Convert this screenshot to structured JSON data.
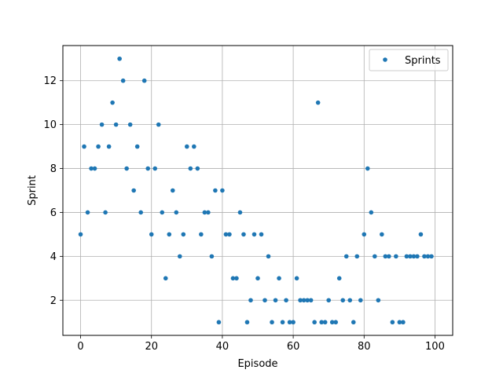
{
  "chart_data": {
    "type": "scatter",
    "title": "",
    "xlabel": "Episode",
    "ylabel": "Sprint",
    "xlim": [
      -5,
      105
    ],
    "ylim": [
      0.4,
      13.6
    ],
    "xticks": [
      0,
      20,
      40,
      60,
      80,
      100
    ],
    "yticks": [
      2,
      4,
      6,
      8,
      10,
      12
    ],
    "grid": true,
    "legend_position": "top-right",
    "series": [
      {
        "name": "Sprints",
        "color": "#1f77b4",
        "marker": "dot",
        "x": [
          0,
          1,
          2,
          3,
          4,
          5,
          6,
          7,
          8,
          9,
          10,
          11,
          12,
          13,
          14,
          15,
          16,
          17,
          18,
          19,
          20,
          21,
          22,
          23,
          24,
          25,
          26,
          27,
          28,
          29,
          30,
          31,
          32,
          33,
          34,
          35,
          36,
          37,
          38,
          39,
          40,
          41,
          42,
          43,
          44,
          45,
          46,
          47,
          48,
          49,
          50,
          51,
          52,
          53,
          54,
          55,
          56,
          57,
          58,
          59,
          60,
          61,
          62,
          63,
          64,
          65,
          66,
          67,
          68,
          69,
          70,
          71,
          72,
          73,
          74,
          75,
          76,
          77,
          78,
          79,
          80,
          81,
          82,
          83,
          84,
          85,
          86,
          87,
          88,
          89,
          90,
          91,
          92,
          93,
          94,
          95,
          96,
          97,
          98,
          99
        ],
        "y": [
          5,
          9,
          6,
          8,
          8,
          9,
          10,
          6,
          9,
          11,
          10,
          13,
          12,
          8,
          10,
          7,
          9,
          6,
          12,
          8,
          5,
          8,
          10,
          6,
          3,
          5,
          7,
          6,
          4,
          5,
          9,
          8,
          9,
          8,
          5,
          6,
          6,
          4,
          7,
          1,
          7,
          5,
          5,
          3,
          3,
          6,
          5,
          1,
          2,
          5,
          3,
          5,
          2,
          4,
          1,
          2,
          3,
          1,
          2,
          1,
          1,
          3,
          2,
          2,
          2,
          2,
          1,
          11,
          1,
          1,
          2,
          1,
          1,
          3,
          2,
          4,
          2,
          1,
          4,
          2,
          5,
          8,
          6,
          4,
          2,
          5,
          4,
          4,
          1,
          4,
          1,
          1,
          4,
          4,
          4,
          4,
          5,
          4,
          4,
          4
        ]
      }
    ]
  }
}
